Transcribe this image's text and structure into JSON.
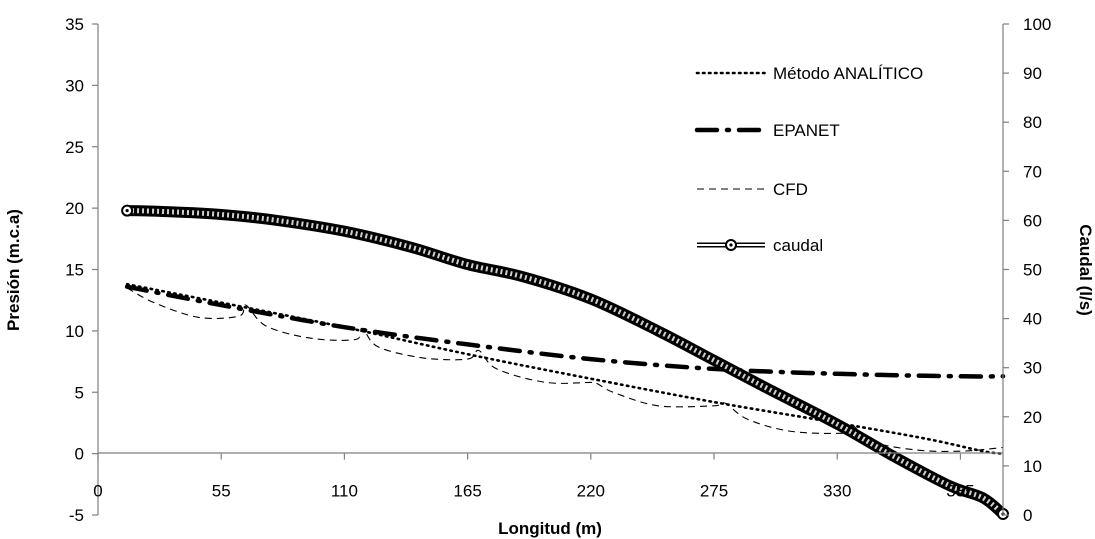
{
  "chart_data": {
    "type": "line",
    "title": "",
    "xlabel": "Longitud (m)",
    "ylabel": "Presión (m.c.a)",
    "y2label": "Caudal (l/s)",
    "xlim": [
      0,
      404
    ],
    "ylim": [
      -5,
      35
    ],
    "y2lim": [
      0,
      100
    ],
    "x_ticks": [
      0,
      55,
      110,
      165,
      220,
      275,
      330,
      385
    ],
    "y_ticks": [
      -5,
      0,
      5,
      10,
      15,
      20,
      25,
      30,
      35
    ],
    "y2_ticks": [
      0,
      10,
      20,
      30,
      40,
      50,
      60,
      70,
      80,
      90,
      100
    ],
    "grid": false,
    "legend_position": "top-right",
    "series": [
      {
        "name": "Método ANALÍTICO",
        "axis": "left",
        "style": "dotted",
        "color": "#000000",
        "x": [
          13,
          55,
          110,
          165,
          220,
          275,
          330,
          370,
          395,
          404
        ],
        "y": [
          13.8,
          12.3,
          10.3,
          8.1,
          6.1,
          4.2,
          2.5,
          1.2,
          0.2,
          0.0
        ]
      },
      {
        "name": "EPANET",
        "axis": "left",
        "style": "dashdot",
        "color": "#000000",
        "x": [
          13,
          55,
          110,
          165,
          220,
          275,
          330,
          385,
          404
        ],
        "y": [
          13.6,
          12.1,
          10.3,
          8.9,
          7.7,
          6.9,
          6.5,
          6.3,
          6.3
        ]
      },
      {
        "name": "CFD",
        "axis": "left",
        "style": "dashed",
        "color": "#000000",
        "x": [
          13,
          25,
          45,
          63,
          66,
          75,
          95,
          115,
          118,
          125,
          145,
          165,
          170,
          178,
          200,
          220,
          223,
          230,
          250,
          275,
          280,
          290,
          310,
          335,
          337,
          345,
          365,
          385,
          404
        ],
        "y": [
          13.5,
          12.3,
          11.1,
          11.2,
          12.1,
          10.4,
          9.4,
          9.3,
          10.2,
          8.7,
          7.8,
          7.7,
          8.4,
          6.9,
          5.8,
          5.8,
          5.7,
          5.0,
          3.9,
          3.9,
          4.1,
          2.8,
          1.8,
          1.7,
          2.3,
          1.0,
          0.3,
          0.2,
          0.5
        ]
      },
      {
        "name": "caudal",
        "axis": "right",
        "style": "marker-line",
        "color": "#000000",
        "x": [
          13,
          30,
          55,
          80,
          110,
          140,
          165,
          190,
          220,
          250,
          275,
          300,
          330,
          355,
          380,
          395,
          404
        ],
        "y": [
          62,
          61.8,
          61.2,
          60,
          57.8,
          54.5,
          51,
          48.5,
          44,
          37.5,
          31.5,
          25.5,
          18.5,
          12,
          6,
          3.5,
          0.2
        ]
      }
    ]
  }
}
